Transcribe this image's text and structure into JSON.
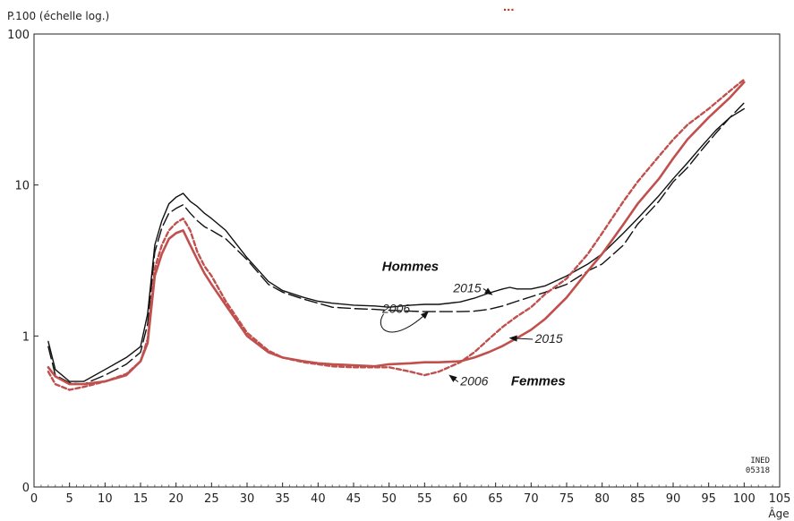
{
  "title_fragment": "...",
  "chart_data": {
    "type": "line",
    "ylabel": "P.100 (échelle log.)",
    "xlabel": "Âge",
    "yscale": "log",
    "ylim": [
      0.1,
      100
    ],
    "xlim": [
      0,
      105
    ],
    "x_ticks": [
      0,
      5,
      10,
      15,
      20,
      25,
      30,
      35,
      40,
      45,
      50,
      55,
      60,
      65,
      70,
      75,
      80,
      85,
      90,
      95,
      100,
      105
    ],
    "x_tick_labels": [
      "0",
      "5",
      "10",
      "15",
      "20",
      "25",
      "30",
      "35",
      "40",
      "45",
      "50",
      "55",
      "60",
      "65",
      "70",
      "75",
      "80",
      "85",
      "90",
      "95",
      "100",
      "105"
    ],
    "y_ticks": [
      0.1,
      1,
      10,
      100
    ],
    "y_tick_labels": [
      "0",
      "1",
      "10",
      "100"
    ],
    "grid": false,
    "source": "INED\n05318",
    "series": [
      {
        "name": "Hommes 2015",
        "group": "Hommes",
        "year": "2015",
        "color": "#111111",
        "dash": "solid",
        "x": [
          2,
          3,
          5,
          7,
          10,
          13,
          15,
          16,
          17,
          18,
          19,
          20,
          21,
          22,
          23,
          24,
          25,
          27,
          30,
          33,
          35,
          38,
          40,
          42,
          45,
          48,
          50,
          53,
          55,
          57,
          60,
          62,
          64,
          66,
          67,
          68,
          70,
          72,
          75,
          78,
          80,
          83,
          85,
          88,
          90,
          92,
          94,
          96,
          98,
          100
        ],
        "y": [
          0.92,
          0.6,
          0.5,
          0.5,
          0.6,
          0.72,
          0.85,
          1.4,
          4.0,
          5.8,
          7.5,
          8.3,
          8.8,
          7.8,
          7.2,
          6.5,
          6.0,
          5.0,
          3.3,
          2.3,
          2.0,
          1.8,
          1.7,
          1.65,
          1.6,
          1.58,
          1.55,
          1.6,
          1.62,
          1.62,
          1.68,
          1.78,
          1.92,
          2.05,
          2.1,
          2.05,
          2.05,
          2.15,
          2.5,
          3.0,
          3.5,
          4.8,
          6.0,
          8.5,
          11.0,
          14.0,
          18.0,
          23.0,
          28.0,
          32.0
        ]
      },
      {
        "name": "Hommes 2006",
        "group": "Hommes",
        "year": "2006",
        "color": "#111111",
        "dash": "long-dash",
        "x": [
          2,
          3,
          5,
          7,
          10,
          13,
          15,
          16,
          17,
          18,
          19,
          20,
          21,
          22,
          23,
          24,
          25,
          27,
          30,
          33,
          35,
          38,
          40,
          42,
          45,
          48,
          50,
          53,
          55,
          57,
          60,
          62,
          64,
          66,
          68,
          70,
          72,
          75,
          78,
          80,
          83,
          85,
          88,
          90,
          92,
          94,
          96,
          98,
          100
        ],
        "y": [
          0.85,
          0.55,
          0.49,
          0.48,
          0.55,
          0.65,
          0.78,
          1.2,
          3.6,
          5.2,
          6.5,
          7.0,
          7.4,
          6.5,
          5.8,
          5.3,
          5.0,
          4.4,
          3.2,
          2.2,
          1.95,
          1.75,
          1.65,
          1.55,
          1.52,
          1.5,
          1.48,
          1.46,
          1.45,
          1.45,
          1.45,
          1.46,
          1.5,
          1.58,
          1.7,
          1.82,
          1.95,
          2.2,
          2.7,
          3.0,
          4.0,
          5.5,
          7.8,
          10.5,
          13.0,
          17.0,
          22.0,
          28.0,
          35.0
        ]
      },
      {
        "name": "Femmes 2015",
        "group": "Femmes",
        "year": "2015",
        "color": "#c0504d",
        "dash": "solid",
        "x": [
          2,
          3,
          5,
          7,
          10,
          13,
          15,
          16,
          17,
          18,
          19,
          20,
          21,
          22,
          23,
          24,
          25,
          27,
          30,
          33,
          35,
          38,
          40,
          42,
          45,
          48,
          50,
          53,
          55,
          57,
          60,
          62,
          64,
          66,
          68,
          70,
          72,
          75,
          78,
          80,
          83,
          85,
          88,
          90,
          92,
          95,
          98,
          100
        ],
        "y": [
          0.62,
          0.54,
          0.48,
          0.48,
          0.5,
          0.55,
          0.68,
          0.9,
          2.5,
          3.5,
          4.4,
          4.8,
          5.0,
          4.0,
          3.2,
          2.6,
          2.2,
          1.6,
          1.0,
          0.78,
          0.72,
          0.68,
          0.66,
          0.65,
          0.64,
          0.63,
          0.65,
          0.66,
          0.67,
          0.67,
          0.68,
          0.72,
          0.78,
          0.86,
          0.97,
          1.1,
          1.3,
          1.8,
          2.7,
          3.5,
          5.5,
          7.5,
          11.0,
          15.0,
          20.0,
          28.0,
          38.0,
          48.0
        ]
      },
      {
        "name": "Femmes 2006",
        "group": "Femmes",
        "year": "2006",
        "color": "#c0504d",
        "dash": "short-dash",
        "x": [
          2,
          3,
          5,
          7,
          10,
          13,
          15,
          16,
          17,
          18,
          19,
          20,
          21,
          22,
          23,
          24,
          25,
          27,
          30,
          33,
          35,
          38,
          40,
          42,
          45,
          48,
          50,
          53,
          55,
          57,
          60,
          62,
          64,
          66,
          68,
          70,
          72,
          75,
          78,
          80,
          83,
          85,
          88,
          90,
          92,
          95,
          98,
          100
        ],
        "y": [
          0.58,
          0.48,
          0.44,
          0.46,
          0.5,
          0.56,
          0.68,
          0.95,
          2.8,
          4.0,
          5.0,
          5.6,
          6.0,
          5.0,
          3.6,
          2.9,
          2.5,
          1.7,
          1.05,
          0.8,
          0.72,
          0.67,
          0.65,
          0.63,
          0.62,
          0.62,
          0.62,
          0.58,
          0.55,
          0.58,
          0.67,
          0.78,
          0.95,
          1.15,
          1.35,
          1.55,
          1.9,
          2.4,
          3.5,
          4.8,
          7.8,
          10.5,
          15.5,
          20.0,
          25.0,
          32.0,
          42.0,
          50.0
        ]
      }
    ],
    "annotations": [
      {
        "text": "Hommes",
        "kind": "series",
        "x": 53,
        "y": 2.7
      },
      {
        "text": "Femmes",
        "kind": "series",
        "x": 71,
        "y": 0.47
      },
      {
        "text": "2006",
        "kind": "year",
        "x": 51,
        "y": 1.42,
        "arrow_to": [
          55.5,
          1.45
        ],
        "curved": true
      },
      {
        "text": "2015",
        "kind": "year",
        "x": 61,
        "y": 1.95,
        "arrow_to": [
          64.5,
          1.88
        ]
      },
      {
        "text": "2015",
        "kind": "year",
        "x": 72.5,
        "y": 0.9,
        "arrow_to": [
          67,
          0.97
        ]
      },
      {
        "text": "2006",
        "kind": "year",
        "x": 62,
        "y": 0.47,
        "arrow_to": [
          58.5,
          0.55
        ]
      }
    ]
  }
}
